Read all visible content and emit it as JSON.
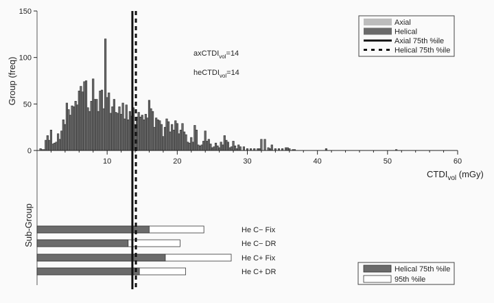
{
  "chart_data": [
    {
      "type": "bar",
      "subtype": "histogram",
      "title": "",
      "xlabel": "CTDIvol (mGy)",
      "xlabel_main": "CTDI",
      "xlabel_sub": "vol",
      "xlabel_unit": " (mGy)",
      "ylabel": "Group (freq)",
      "xlim": [
        0,
        60
      ],
      "ylim": [
        0,
        150
      ],
      "xticks": [
        10,
        20,
        30,
        40,
        50,
        60
      ],
      "yticks": [
        0,
        50,
        100,
        150
      ],
      "grid": false,
      "bin_width": 0.25,
      "series": [
        {
          "name": "Helical",
          "color": "#6b6b6b",
          "x": [
            0.5,
            0.75,
            1.0,
            1.25,
            1.5,
            1.75,
            2.0,
            2.25,
            2.5,
            2.75,
            3.0,
            3.25,
            3.5,
            3.75,
            4.0,
            4.25,
            4.5,
            4.75,
            5.0,
            5.25,
            5.5,
            5.75,
            6.0,
            6.25,
            6.5,
            6.75,
            7.0,
            7.25,
            7.5,
            7.75,
            8.0,
            8.25,
            8.5,
            8.75,
            9.0,
            9.25,
            9.5,
            9.75,
            10.0,
            10.25,
            10.5,
            10.75,
            11.0,
            11.25,
            11.5,
            11.75,
            12.0,
            12.25,
            12.5,
            12.75,
            13.0,
            13.25,
            13.5,
            13.75,
            14.0,
            14.25,
            14.5,
            14.75,
            15.0,
            15.25,
            15.5,
            15.75,
            16.0,
            16.25,
            16.5,
            16.75,
            17.0,
            17.25,
            17.5,
            17.75,
            18.0,
            18.25,
            18.5,
            18.75,
            19.0,
            19.25,
            19.5,
            19.75,
            20.0,
            20.25,
            20.5,
            20.75,
            21.0,
            21.25,
            21.5,
            21.75,
            22.0,
            22.25,
            22.5,
            22.75,
            23.0,
            23.25,
            23.5,
            23.75,
            24.0,
            24.25,
            24.5,
            24.75,
            25.0,
            25.25,
            25.5,
            25.75,
            26.0,
            26.25,
            26.5,
            26.75,
            27.0,
            27.25,
            27.5,
            27.75,
            28.0,
            28.25,
            28.5,
            28.75,
            29.0,
            29.5,
            30.0,
            30.5,
            31.0,
            31.5,
            31.75,
            32.0,
            32.5,
            33.0,
            33.25,
            33.5,
            34.0,
            34.5,
            35.0,
            35.5,
            35.75,
            36.0,
            36.5,
            36.75,
            41.25,
            51.25
          ],
          "values": [
            2,
            1,
            1,
            11,
            16,
            11,
            22,
            7,
            8,
            9,
            18,
            12,
            21,
            33,
            28,
            51,
            44,
            38,
            48,
            47,
            53,
            49,
            64,
            69,
            63,
            74,
            75,
            46,
            42,
            53,
            77,
            55,
            55,
            42,
            64,
            65,
            45,
            120,
            57,
            62,
            40,
            47,
            55,
            41,
            40,
            47,
            39,
            51,
            34,
            49,
            33,
            42,
            37,
            46,
            28,
            36,
            41,
            36,
            38,
            33,
            39,
            35,
            54,
            45,
            42,
            25,
            35,
            33,
            32,
            28,
            15,
            25,
            34,
            31,
            20,
            28,
            22,
            32,
            29,
            18,
            22,
            29,
            20,
            17,
            9,
            8,
            14,
            9,
            27,
            22,
            6,
            5,
            6,
            10,
            21,
            10,
            12,
            7,
            3,
            4,
            8,
            5,
            3,
            9,
            6,
            16,
            11,
            9,
            3,
            4,
            10,
            5,
            2,
            6,
            4,
            4,
            2,
            2,
            2,
            2,
            2,
            12,
            12,
            3,
            2,
            6,
            2,
            2,
            2,
            3,
            3,
            2,
            1,
            1,
            2,
            1
          ]
        },
        {
          "name": "Axial",
          "color": "#bdbdbd",
          "x": [],
          "values": []
        }
      ],
      "reference_lines": [
        {
          "name": "Axial 75th %ile",
          "x": 13.6,
          "style": "solid",
          "color": "#111111"
        },
        {
          "name": "Helical 75th %ile",
          "x": 14.1,
          "style": "dashed",
          "color": "#111111"
        }
      ],
      "annotations": [
        {
          "prefix": "axCTDI",
          "sub": "vol",
          "suffix": "=14",
          "x": 22.5,
          "y": 104
        },
        {
          "prefix": "heCTDI",
          "sub": "vol",
          "suffix": "=14",
          "x": 22.5,
          "y": 84
        }
      ],
      "legend": {
        "position": "top-right",
        "entries": [
          {
            "label": "Axial",
            "kind": "patch",
            "color": "#bdbdbd"
          },
          {
            "label": "Helical",
            "kind": "patch",
            "color": "#6b6b6b"
          },
          {
            "label": "Axial 75th %ile",
            "kind": "line-solid",
            "color": "#111111"
          },
          {
            "label": "Helical 75th %ile",
            "kind": "line-dashed",
            "color": "#111111"
          }
        ]
      }
    },
    {
      "type": "bar",
      "subtype": "horizontal-overlay",
      "ylabel": "Sub-Group",
      "xlim": [
        0,
        60
      ],
      "categories": [
        "He C− Fix",
        "He C− DR",
        "He C+ Fix",
        "He C+ DR"
      ],
      "series": [
        {
          "name": "95th %ile",
          "color": "#ffffff",
          "values": [
            23.8,
            20.4,
            27.7,
            21.2
          ]
        },
        {
          "name": "Helical 75th %ile",
          "color": "#6b6b6b",
          "values": [
            16.0,
            13.0,
            18.3,
            14.6
          ]
        }
      ],
      "legend": {
        "position": "bottom-right",
        "entries": [
          {
            "label": "Helical 75th %ile",
            "kind": "patch",
            "color": "#6b6b6b"
          },
          {
            "label": "95th %ile",
            "kind": "patch",
            "color": "#ffffff"
          }
        ]
      }
    }
  ]
}
